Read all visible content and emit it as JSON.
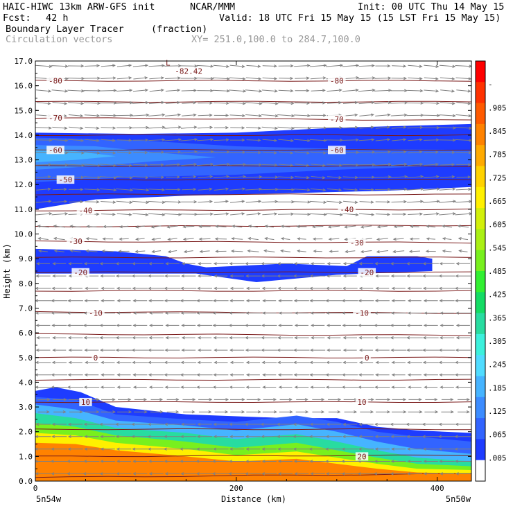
{
  "header": {
    "model": "HAIC-HIWC 13km ARW-GFS init",
    "org": "NCAR/MMM",
    "init": "Init: 00 UTC Thu 14 May 15",
    "fcst_label": "Fcst:",
    "fcst_value": "42 h",
    "valid": "Valid: 18 UTC Fri 15 May 15 (15 LST Fri 15 May 15)",
    "field1_name": "Boundary Layer Tracer",
    "field1_units": "(fraction)",
    "field2_name": "Circulation vectors",
    "xy_range": "XY= 251.0,100.0 to 284.7,100.0"
  },
  "colors": {
    "contour_line": "#7a1a1a",
    "vector": "#808080",
    "palette": [
      "#ffffff",
      "#1e3cff",
      "#3264ff",
      "#3c8cff",
      "#46b4ff",
      "#50dcff",
      "#3cf0dc",
      "#28dca0",
      "#14dc64",
      "#32f032",
      "#78f01e",
      "#aaf014",
      "#d2f00a",
      "#fff000",
      "#ffd200",
      "#ffaa00",
      "#ff8200",
      "#ff5a00",
      "#ff3200",
      "#ff0000"
    ]
  },
  "chart_data": {
    "type": "heatmap",
    "title": "Boundary Layer Tracer",
    "xlabel": "Distance (km)",
    "ylabel": "Height (km)",
    "xlim": [
      0,
      434
    ],
    "ylim": [
      0,
      17
    ],
    "x_ticks": [
      "0",
      "200",
      "400"
    ],
    "x_tick_values": [
      0,
      200,
      400
    ],
    "y_ticks": [
      "0.0",
      "1.0",
      "2.0",
      "3.0",
      "4.0",
      "5.0",
      "6.0",
      "7.0",
      "8.0",
      "9.0",
      "10.0",
      "11.0",
      "12.0",
      "13.0",
      "14.0",
      "15.0",
      "16.0",
      "17.0"
    ],
    "y_tick_values": [
      0,
      1,
      2,
      3,
      4,
      5,
      6,
      7,
      8,
      9,
      10,
      11,
      12,
      13,
      14,
      15,
      16,
      17
    ],
    "x_end_labels": [
      "5n54w",
      "5n50w"
    ],
    "colorbar_labels": [
      "-",
      ".905",
      ".845",
      ".785",
      ".725",
      ".665",
      ".605",
      ".545",
      ".485",
      ".425",
      ".365",
      ".305",
      ".245",
      ".185",
      ".125",
      ".065",
      ".005"
    ],
    "colorbar_values": [
      0.965,
      0.905,
      0.845,
      0.785,
      0.725,
      0.665,
      0.605,
      0.545,
      0.485,
      0.425,
      0.365,
      0.305,
      0.245,
      0.185,
      0.125,
      0.065,
      0.005
    ],
    "contour_labels": [
      {
        "text": "-80",
        "x": 20,
        "y": 16.2
      },
      {
        "text": "-80",
        "x": 300,
        "y": 16.2
      },
      {
        "text": "-70",
        "x": 20,
        "y": 14.7
      },
      {
        "text": "-70",
        "x": 300,
        "y": 14.65
      },
      {
        "text": "-60",
        "x": 20,
        "y": 13.4
      },
      {
        "text": "-60",
        "x": 300,
        "y": 13.4
      },
      {
        "text": "-50",
        "x": 30,
        "y": 12.2
      },
      {
        "text": "-40",
        "x": 50,
        "y": 10.95
      },
      {
        "text": "-40",
        "x": 310,
        "y": 11.0
      },
      {
        "text": "-30",
        "x": 40,
        "y": 9.7
      },
      {
        "text": "-30",
        "x": 320,
        "y": 9.65
      },
      {
        "text": "-20",
        "x": 45,
        "y": 8.45
      },
      {
        "text": "-20",
        "x": 330,
        "y": 8.45
      },
      {
        "text": "-10",
        "x": 60,
        "y": 6.8
      },
      {
        "text": "-10",
        "x": 325,
        "y": 6.8
      },
      {
        "text": "0",
        "x": 60,
        "y": 5.0
      },
      {
        "text": "0",
        "x": 330,
        "y": 5.0
      },
      {
        "text": "10",
        "x": 50,
        "y": 3.2
      },
      {
        "text": "10",
        "x": 325,
        "y": 3.2
      },
      {
        "text": "20",
        "x": 325,
        "y": 1.0
      }
    ],
    "low_label": {
      "marker": "L",
      "text": "-82.42",
      "x": 132,
      "y": 16.6
    },
    "contour_levels": [
      {
        "value": -80,
        "y0": 16.2,
        "y1": 16.2
      },
      {
        "value": -75,
        "y0": 15.35,
        "y1": 15.35
      },
      {
        "value": -70,
        "y0": 14.7,
        "y1": 14.6
      },
      {
        "value": -65,
        "y0": 14.0,
        "y1": 14.0
      },
      {
        "value": -60,
        "y0": 13.4,
        "y1": 13.4
      },
      {
        "value": -55,
        "y0": 12.75,
        "y1": 12.75
      },
      {
        "value": -50,
        "y0": 12.2,
        "y1": 12.2
      },
      {
        "value": -45,
        "y0": 11.6,
        "y1": 11.6
      },
      {
        "value": -40,
        "y0": 10.95,
        "y1": 11.0
      },
      {
        "value": -35,
        "y0": 10.3,
        "y1": 10.35
      },
      {
        "value": -30,
        "y0": 9.7,
        "y1": 9.65
      },
      {
        "value": -25,
        "y0": 9.05,
        "y1": 9.05
      },
      {
        "value": -20,
        "y0": 8.45,
        "y1": 8.45
      },
      {
        "value": -15,
        "y0": 7.7,
        "y1": 7.7
      },
      {
        "value": -10,
        "y0": 6.85,
        "y1": 6.8
      },
      {
        "value": -5,
        "y0": 5.95,
        "y1": 5.9
      },
      {
        "value": 0,
        "y0": 5.0,
        "y1": 5.0
      },
      {
        "value": 5,
        "y0": 4.1,
        "y1": 4.1
      },
      {
        "value": 10,
        "y0": 3.2,
        "y1": 3.2
      },
      {
        "value": 15,
        "y0": 2.1,
        "y1": 2.1
      },
      {
        "value": 20,
        "y0": 1.0,
        "y1": 1.05
      },
      {
        "value": 25,
        "y0": 0.15,
        "y1": 0.3
      }
    ],
    "regions": [
      {
        "name": "upper-layer-outer",
        "level": 0.005,
        "top": [
          [
            0,
            14.1
          ],
          [
            100,
            14.05
          ],
          [
            200,
            14.1
          ],
          [
            300,
            14.3
          ],
          [
            434,
            14.45
          ]
        ],
        "bottom": [
          [
            0,
            11.0
          ],
          [
            60,
            11.4
          ],
          [
            150,
            11.55
          ],
          [
            250,
            11.65
          ],
          [
            350,
            11.75
          ],
          [
            434,
            11.9
          ]
        ]
      },
      {
        "name": "upper-layer-mid",
        "level": 0.065,
        "top": [
          [
            0,
            13.9
          ],
          [
            100,
            13.8
          ],
          [
            200,
            13.55
          ],
          [
            300,
            13.45
          ],
          [
            434,
            13.4
          ]
        ],
        "bottom": [
          [
            0,
            12.1
          ],
          [
            100,
            12.3
          ],
          [
            200,
            12.4
          ],
          [
            300,
            12.6
          ],
          [
            434,
            12.8
          ]
        ]
      },
      {
        "name": "upper-layer-inner",
        "level": 0.125,
        "top": [
          [
            0,
            13.6
          ],
          [
            60,
            13.55
          ],
          [
            120,
            13.3
          ],
          [
            180,
            13.1
          ]
        ],
        "bottom": [
          [
            0,
            12.6
          ],
          [
            60,
            12.75
          ],
          [
            120,
            12.95
          ],
          [
            180,
            13.1
          ]
        ]
      },
      {
        "name": "upper-layer-core",
        "level": 0.185,
        "top": [
          [
            0,
            13.45
          ],
          [
            40,
            13.35
          ],
          [
            80,
            13.15
          ]
        ],
        "bottom": [
          [
            0,
            12.9
          ],
          [
            40,
            13.0
          ],
          [
            80,
            13.15
          ]
        ]
      },
      {
        "name": "mid-layer",
        "level": 0.005,
        "top": [
          [
            0,
            9.4
          ],
          [
            80,
            9.3
          ],
          [
            130,
            9.1
          ],
          [
            150,
            8.8
          ],
          [
            170,
            8.65
          ],
          [
            250,
            8.8
          ],
          [
            310,
            8.7
          ],
          [
            330,
            9.1
          ],
          [
            380,
            9.1
          ],
          [
            395,
            9.0
          ]
        ],
        "bottom": [
          [
            0,
            8.4
          ],
          [
            80,
            8.4
          ],
          [
            160,
            8.4
          ],
          [
            220,
            8.05
          ],
          [
            300,
            8.35
          ],
          [
            395,
            8.5
          ]
        ]
      },
      {
        "name": "boundary-layer-005",
        "level": 0.005,
        "top": [
          [
            0,
            3.65
          ],
          [
            20,
            3.8
          ],
          [
            45,
            3.6
          ],
          [
            80,
            3.0
          ],
          [
            150,
            2.7
          ],
          [
            250,
            2.55
          ],
          [
            300,
            2.55
          ],
          [
            340,
            2.2
          ],
          [
            380,
            2.05
          ],
          [
            434,
            1.95
          ]
        ],
        "bottom": [
          [
            0,
            0
          ],
          [
            434,
            0
          ]
        ]
      },
      {
        "name": "boundary-layer-065",
        "level": 0.065,
        "top": [
          [
            0,
            3.4
          ],
          [
            40,
            3.3
          ],
          [
            80,
            2.7
          ],
          [
            150,
            2.5
          ],
          [
            200,
            2.4
          ],
          [
            260,
            2.65
          ],
          [
            300,
            2.4
          ],
          [
            340,
            2.0
          ],
          [
            380,
            1.8
          ],
          [
            434,
            1.6
          ]
        ],
        "bottom": [
          [
            0,
            0
          ],
          [
            434,
            0
          ]
        ]
      },
      {
        "name": "boundary-layer-185",
        "level": 0.185,
        "top": [
          [
            0,
            3.1
          ],
          [
            40,
            2.9
          ],
          [
            80,
            2.45
          ],
          [
            150,
            2.25
          ],
          [
            200,
            2.05
          ],
          [
            260,
            2.3
          ],
          [
            300,
            2.0
          ],
          [
            340,
            1.6
          ],
          [
            380,
            1.3
          ],
          [
            434,
            1.1
          ]
        ],
        "bottom": [
          [
            0,
            0
          ],
          [
            434,
            0
          ]
        ]
      },
      {
        "name": "boundary-layer-365",
        "level": 0.365,
        "top": [
          [
            0,
            2.75
          ],
          [
            40,
            2.55
          ],
          [
            80,
            2.15
          ],
          [
            150,
            1.95
          ],
          [
            200,
            1.7
          ],
          [
            260,
            1.9
          ],
          [
            300,
            1.6
          ],
          [
            340,
            1.25
          ],
          [
            380,
            0.95
          ],
          [
            434,
            0.8
          ]
        ],
        "bottom": [
          [
            0,
            0
          ],
          [
            434,
            0
          ]
        ]
      },
      {
        "name": "boundary-layer-545",
        "level": 0.545,
        "top": [
          [
            0,
            2.35
          ],
          [
            40,
            2.2
          ],
          [
            80,
            1.85
          ],
          [
            150,
            1.6
          ],
          [
            200,
            1.35
          ],
          [
            260,
            1.55
          ],
          [
            300,
            1.25
          ],
          [
            340,
            0.95
          ],
          [
            380,
            0.7
          ],
          [
            434,
            0.6
          ]
        ],
        "bottom": [
          [
            0,
            0
          ],
          [
            434,
            0
          ]
        ]
      },
      {
        "name": "boundary-layer-725",
        "level": 0.725,
        "top": [
          [
            0,
            1.95
          ],
          [
            40,
            1.85
          ],
          [
            80,
            1.55
          ],
          [
            150,
            1.3
          ],
          [
            200,
            1.05
          ],
          [
            260,
            1.2
          ],
          [
            300,
            0.95
          ],
          [
            340,
            0.7
          ],
          [
            380,
            0.5
          ],
          [
            434,
            0.45
          ]
        ],
        "bottom": [
          [
            0,
            0
          ],
          [
            434,
            0
          ]
        ]
      },
      {
        "name": "boundary-layer-905",
        "level": 0.905,
        "top": [
          [
            0,
            1.55
          ],
          [
            40,
            1.5
          ],
          [
            80,
            1.25
          ],
          [
            150,
            1.0
          ],
          [
            200,
            0.8
          ],
          [
            260,
            0.9
          ],
          [
            300,
            0.7
          ],
          [
            340,
            0.5
          ],
          [
            380,
            0.35
          ],
          [
            434,
            0.3
          ]
        ],
        "bottom": [
          [
            0,
            0
          ],
          [
            434,
            0
          ]
        ]
      }
    ],
    "vectors": {
      "description": "circulation vectors, upper levels westerly, lower levels easterly",
      "bands": [
        {
          "y_min": 10.8,
          "y_max": 17.0,
          "u": 1.0,
          "w": 0.05
        },
        {
          "y_min": 9.3,
          "y_max": 10.8,
          "u": -0.35,
          "w": 0.05
        },
        {
          "y_min": 3.8,
          "y_max": 9.3,
          "u": -0.9,
          "w": 0.0
        },
        {
          "y_min": 2.8,
          "y_max": 3.8,
          "u": 0.7,
          "w": 0.0
        },
        {
          "y_min": 0.0,
          "y_max": 2.8,
          "u": -1.0,
          "w": 0.0
        }
      ]
    }
  }
}
